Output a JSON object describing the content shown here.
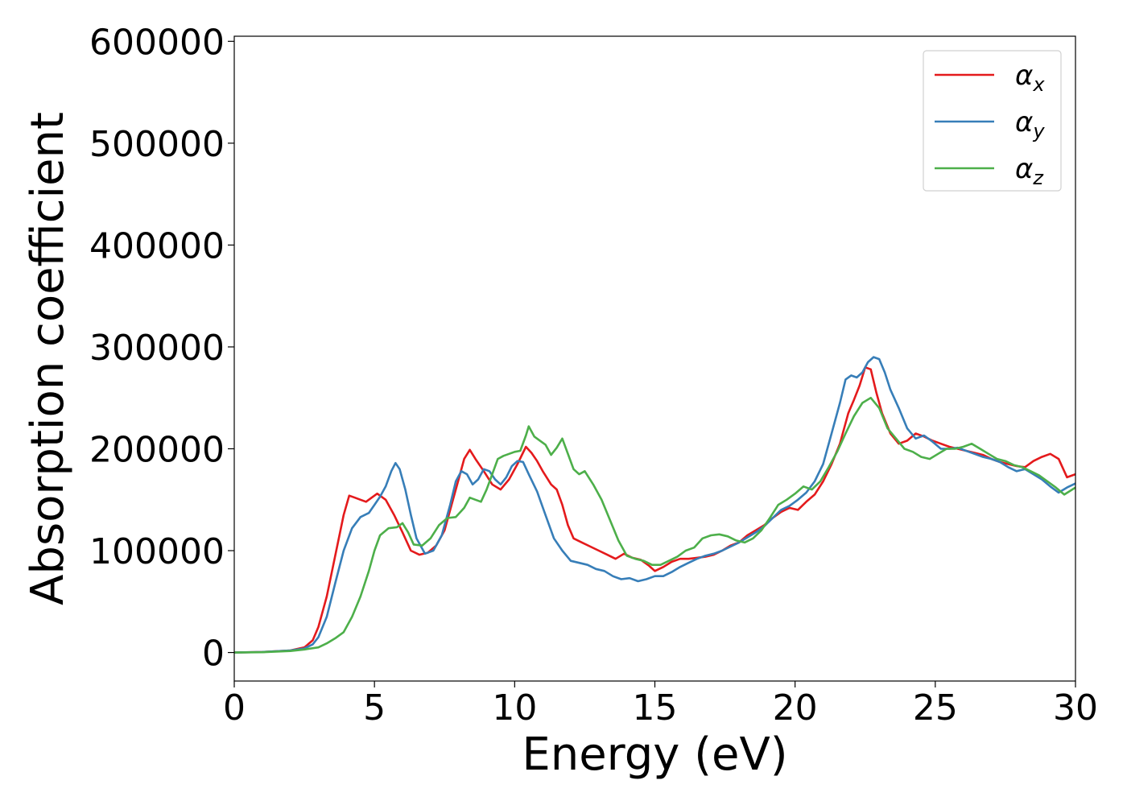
{
  "chart_data": {
    "type": "line",
    "title": "",
    "xlabel": "Energy (eV)",
    "ylabel": "Absorption coefficient",
    "xlim": [
      0,
      30
    ],
    "ylim": [
      -28000,
      605000
    ],
    "xticks": [
      0,
      5,
      10,
      15,
      20,
      25,
      30
    ],
    "xtick_labels": [
      "0",
      "5",
      "10",
      "15",
      "20",
      "25",
      "30"
    ],
    "yticks": [
      0,
      100000,
      200000,
      300000,
      400000,
      500000,
      600000
    ],
    "ytick_labels": [
      "0",
      "100000",
      "200000",
      "300000",
      "400000",
      "500000",
      "600000"
    ],
    "grid": false,
    "legend_position": "top-right",
    "series": [
      {
        "name": "α",
        "subscript": "x",
        "color": "#e41a1c",
        "x": [
          0,
          1,
          2,
          2.5,
          2.8,
          3,
          3.3,
          3.6,
          3.9,
          4.1,
          4.3,
          4.5,
          4.7,
          4.9,
          5.1,
          5.4,
          5.7,
          6.0,
          6.3,
          6.6,
          6.9,
          7.2,
          7.5,
          7.8,
          8.0,
          8.2,
          8.4,
          8.6,
          8.9,
          9.2,
          9.5,
          9.8,
          10.1,
          10.4,
          10.6,
          10.8,
          11.0,
          11.3,
          11.5,
          11.7,
          11.9,
          12.1,
          12.4,
          12.7,
          13.0,
          13.3,
          13.6,
          13.9,
          14.2,
          14.5,
          14.8,
          15.0,
          15.3,
          15.6,
          15.9,
          16.2,
          16.5,
          16.8,
          17.1,
          17.4,
          17.7,
          18.0,
          18.3,
          18.6,
          18.9,
          19.2,
          19.5,
          19.8,
          20.1,
          20.4,
          20.7,
          21.0,
          21.3,
          21.6,
          21.9,
          22.1,
          22.3,
          22.5,
          22.7,
          22.9,
          23.1,
          23.4,
          23.7,
          24.0,
          24.3,
          24.6,
          24.9,
          25.2,
          25.5,
          25.8,
          26.1,
          26.4,
          26.7,
          27.0,
          27.3,
          27.6,
          27.9,
          28.2,
          28.5,
          28.8,
          29.1,
          29.4,
          29.7,
          30.0
        ],
        "y": [
          0,
          500,
          2000,
          5000,
          12000,
          25000,
          55000,
          95000,
          135000,
          154000,
          152000,
          150000,
          148000,
          152000,
          156000,
          150000,
          135000,
          118000,
          100000,
          96000,
          98000,
          105000,
          120000,
          150000,
          170000,
          190000,
          199000,
          190000,
          178000,
          165000,
          160000,
          170000,
          185000,
          202000,
          196000,
          188000,
          178000,
          165000,
          160000,
          145000,
          125000,
          112000,
          108000,
          104000,
          100000,
          96000,
          92000,
          97000,
          93000,
          91000,
          85000,
          80000,
          84000,
          89000,
          92000,
          92000,
          93000,
          94000,
          96000,
          100000,
          105000,
          108000,
          115000,
          120000,
          125000,
          132000,
          138000,
          142000,
          140000,
          148000,
          155000,
          168000,
          185000,
          205000,
          235000,
          248000,
          262000,
          280000,
          278000,
          255000,
          235000,
          215000,
          205000,
          208000,
          215000,
          212000,
          208000,
          205000,
          202000,
          200000,
          198000,
          196000,
          194000,
          190000,
          187000,
          185000,
          183000,
          182000,
          188000,
          192000,
          195000,
          190000,
          172000,
          175000
        ]
      },
      {
        "name": "α",
        "subscript": "y",
        "color": "#377eb8",
        "x": [
          0,
          1,
          2,
          2.5,
          2.8,
          3,
          3.3,
          3.6,
          3.9,
          4.2,
          4.5,
          4.8,
          5.0,
          5.2,
          5.4,
          5.6,
          5.75,
          5.9,
          6.1,
          6.3,
          6.5,
          6.8,
          7.1,
          7.4,
          7.7,
          7.9,
          8.1,
          8.3,
          8.5,
          8.7,
          8.9,
          9.1,
          9.3,
          9.5,
          9.7,
          9.9,
          10.1,
          10.3,
          10.5,
          10.8,
          11.1,
          11.4,
          11.7,
          12.0,
          12.3,
          12.6,
          12.9,
          13.2,
          13.5,
          13.8,
          14.1,
          14.4,
          14.7,
          15.0,
          15.3,
          15.6,
          15.9,
          16.2,
          16.5,
          16.8,
          17.1,
          17.4,
          17.7,
          18.0,
          18.3,
          18.6,
          18.9,
          19.2,
          19.5,
          19.8,
          20.1,
          20.4,
          20.7,
          21.0,
          21.3,
          21.6,
          21.8,
          22.0,
          22.2,
          22.4,
          22.6,
          22.8,
          23.0,
          23.2,
          23.4,
          23.7,
          24.0,
          24.3,
          24.6,
          24.9,
          25.2,
          25.5,
          25.8,
          26.1,
          26.4,
          26.7,
          27.0,
          27.3,
          27.6,
          27.9,
          28.2,
          28.5,
          28.8,
          29.1,
          29.4,
          29.7,
          30.0
        ],
        "y": [
          0,
          500,
          2000,
          4000,
          8000,
          15000,
          35000,
          68000,
          100000,
          122000,
          133000,
          137000,
          145000,
          153000,
          163000,
          178000,
          186000,
          180000,
          160000,
          135000,
          112000,
          97000,
          100000,
          115000,
          145000,
          168000,
          178000,
          175000,
          165000,
          170000,
          180000,
          178000,
          170000,
          165000,
          172000,
          183000,
          188000,
          187000,
          175000,
          158000,
          135000,
          112000,
          100000,
          90000,
          88000,
          86000,
          82000,
          80000,
          75000,
          72000,
          73000,
          70000,
          72000,
          75000,
          75000,
          79000,
          84000,
          88000,
          92000,
          95000,
          97000,
          100000,
          104000,
          108000,
          113000,
          118000,
          124000,
          132000,
          140000,
          144000,
          150000,
          157000,
          168000,
          185000,
          215000,
          245000,
          268000,
          272000,
          270000,
          275000,
          285000,
          290000,
          288000,
          275000,
          258000,
          240000,
          220000,
          210000,
          213000,
          207000,
          200000,
          200000,
          201000,
          198000,
          195000,
          192000,
          190000,
          187000,
          182000,
          178000,
          180000,
          175000,
          170000,
          163000,
          157000,
          162000,
          166000
        ]
      },
      {
        "name": "α",
        "subscript": "z",
        "color": "#4daf4a",
        "x": [
          0,
          1,
          2,
          2.5,
          3.0,
          3.3,
          3.6,
          3.9,
          4.2,
          4.5,
          4.8,
          5.0,
          5.2,
          5.5,
          5.8,
          6.0,
          6.2,
          6.4,
          6.7,
          7.0,
          7.3,
          7.6,
          7.9,
          8.2,
          8.4,
          8.6,
          8.8,
          9.0,
          9.2,
          9.4,
          9.6,
          9.8,
          10.0,
          10.2,
          10.4,
          10.5,
          10.7,
          10.9,
          11.1,
          11.3,
          11.5,
          11.7,
          11.9,
          12.1,
          12.3,
          12.5,
          12.8,
          13.1,
          13.4,
          13.7,
          14.0,
          14.3,
          14.6,
          14.9,
          15.2,
          15.5,
          15.8,
          16.1,
          16.4,
          16.7,
          17.0,
          17.3,
          17.6,
          17.9,
          18.2,
          18.5,
          18.8,
          19.1,
          19.4,
          19.7,
          20.0,
          20.3,
          20.6,
          20.9,
          21.2,
          21.5,
          21.8,
          22.1,
          22.4,
          22.7,
          23.0,
          23.3,
          23.6,
          23.9,
          24.2,
          24.5,
          24.8,
          25.1,
          25.4,
          25.7,
          26.0,
          26.3,
          26.6,
          26.9,
          27.2,
          27.5,
          27.8,
          28.1,
          28.4,
          28.7,
          29.0,
          29.3,
          29.6,
          30.0
        ],
        "y": [
          0,
          300,
          1500,
          3000,
          5000,
          9000,
          14000,
          20000,
          35000,
          55000,
          80000,
          100000,
          115000,
          122000,
          123000,
          127000,
          118000,
          106000,
          105000,
          112000,
          125000,
          132000,
          133000,
          142000,
          152000,
          150000,
          148000,
          160000,
          175000,
          190000,
          193000,
          195000,
          197000,
          198000,
          213000,
          222000,
          212000,
          208000,
          204000,
          194000,
          201000,
          210000,
          195000,
          180000,
          175000,
          178000,
          165000,
          150000,
          130000,
          110000,
          95000,
          92000,
          90000,
          86000,
          86000,
          90000,
          94000,
          100000,
          103000,
          112000,
          115000,
          116000,
          114000,
          110000,
          108000,
          112000,
          120000,
          132000,
          145000,
          150000,
          156000,
          163000,
          160000,
          168000,
          182000,
          197000,
          215000,
          232000,
          245000,
          250000,
          240000,
          220000,
          210000,
          200000,
          197000,
          192000,
          190000,
          195000,
          200000,
          200000,
          202000,
          205000,
          200000,
          195000,
          190000,
          188000,
          184000,
          182000,
          178000,
          174000,
          168000,
          162000,
          155000,
          162000
        ]
      }
    ]
  }
}
